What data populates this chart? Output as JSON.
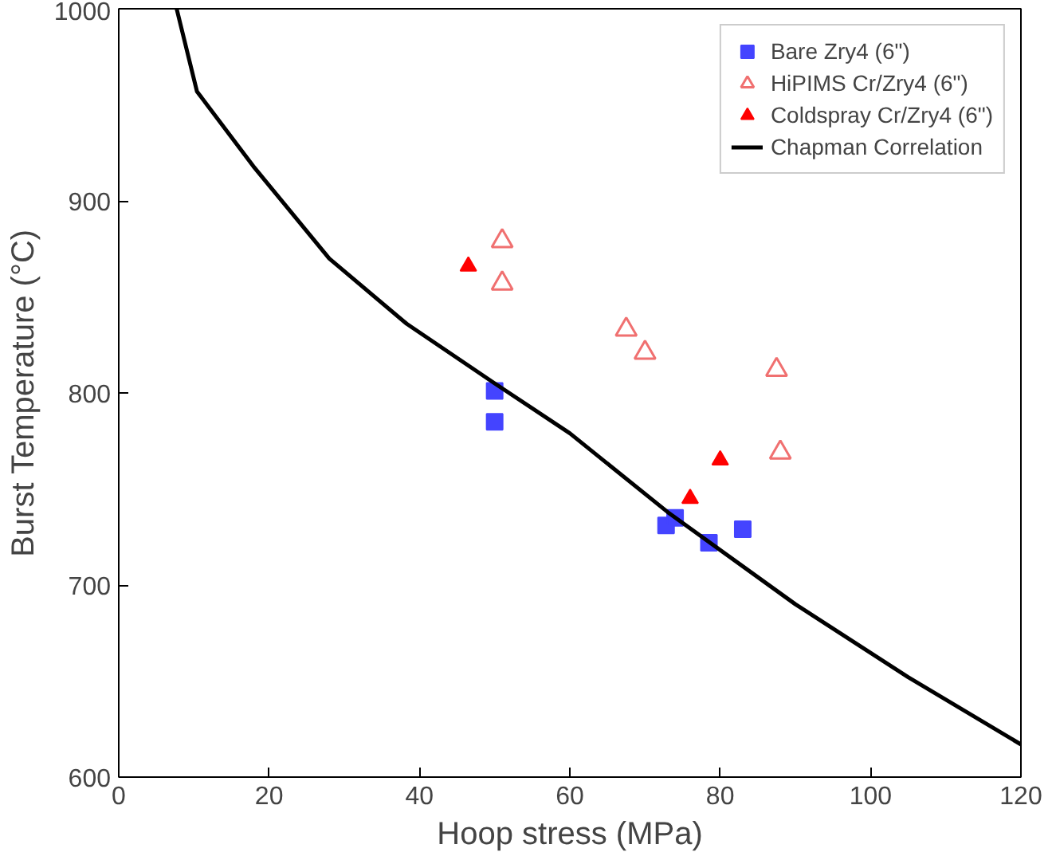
{
  "chart_data": {
    "type": "scatter",
    "xlabel": "Hoop stress (MPa)",
    "ylabel": "Burst Temperature (°C)",
    "xlim": [
      0,
      120
    ],
    "ylim": [
      600,
      1000
    ],
    "xticks": [
      0,
      20,
      40,
      60,
      80,
      100,
      120
    ],
    "yticks": [
      600,
      700,
      800,
      900,
      1000
    ],
    "grid": false,
    "legend": "top right",
    "series": [
      {
        "name": "Bare Zry4 (6\")",
        "color": "#4444ff",
        "marker": "square",
        "x": [
          50,
          50,
          72.8,
          74,
          78.5,
          83
        ],
        "values": [
          801,
          785,
          731,
          735,
          722,
          729
        ]
      },
      {
        "name": "HiPIMS Cr/Zry4 (6\")",
        "color": "#f07070",
        "marker": "triangle_open",
        "x": [
          51,
          51,
          67.5,
          70,
          87.5,
          88
        ],
        "values": [
          879,
          857,
          833,
          821,
          812,
          769
        ]
      },
      {
        "name": "Coldspray Cr/Zry4 (6\")",
        "color": "#ff0000",
        "marker": "triangle",
        "x": [
          46.5,
          76,
          80
        ],
        "values": [
          866,
          745,
          765
        ]
      },
      {
        "name": "Chapman Correlation",
        "type": "line",
        "color": "#000000",
        "x": [
          7.7,
          10.4,
          17.9,
          28,
          38.3,
          50,
          60,
          73,
          90,
          105,
          120
        ],
        "values": [
          1000,
          957,
          918,
          870,
          836,
          805,
          779,
          738,
          690,
          652,
          617
        ]
      }
    ]
  }
}
